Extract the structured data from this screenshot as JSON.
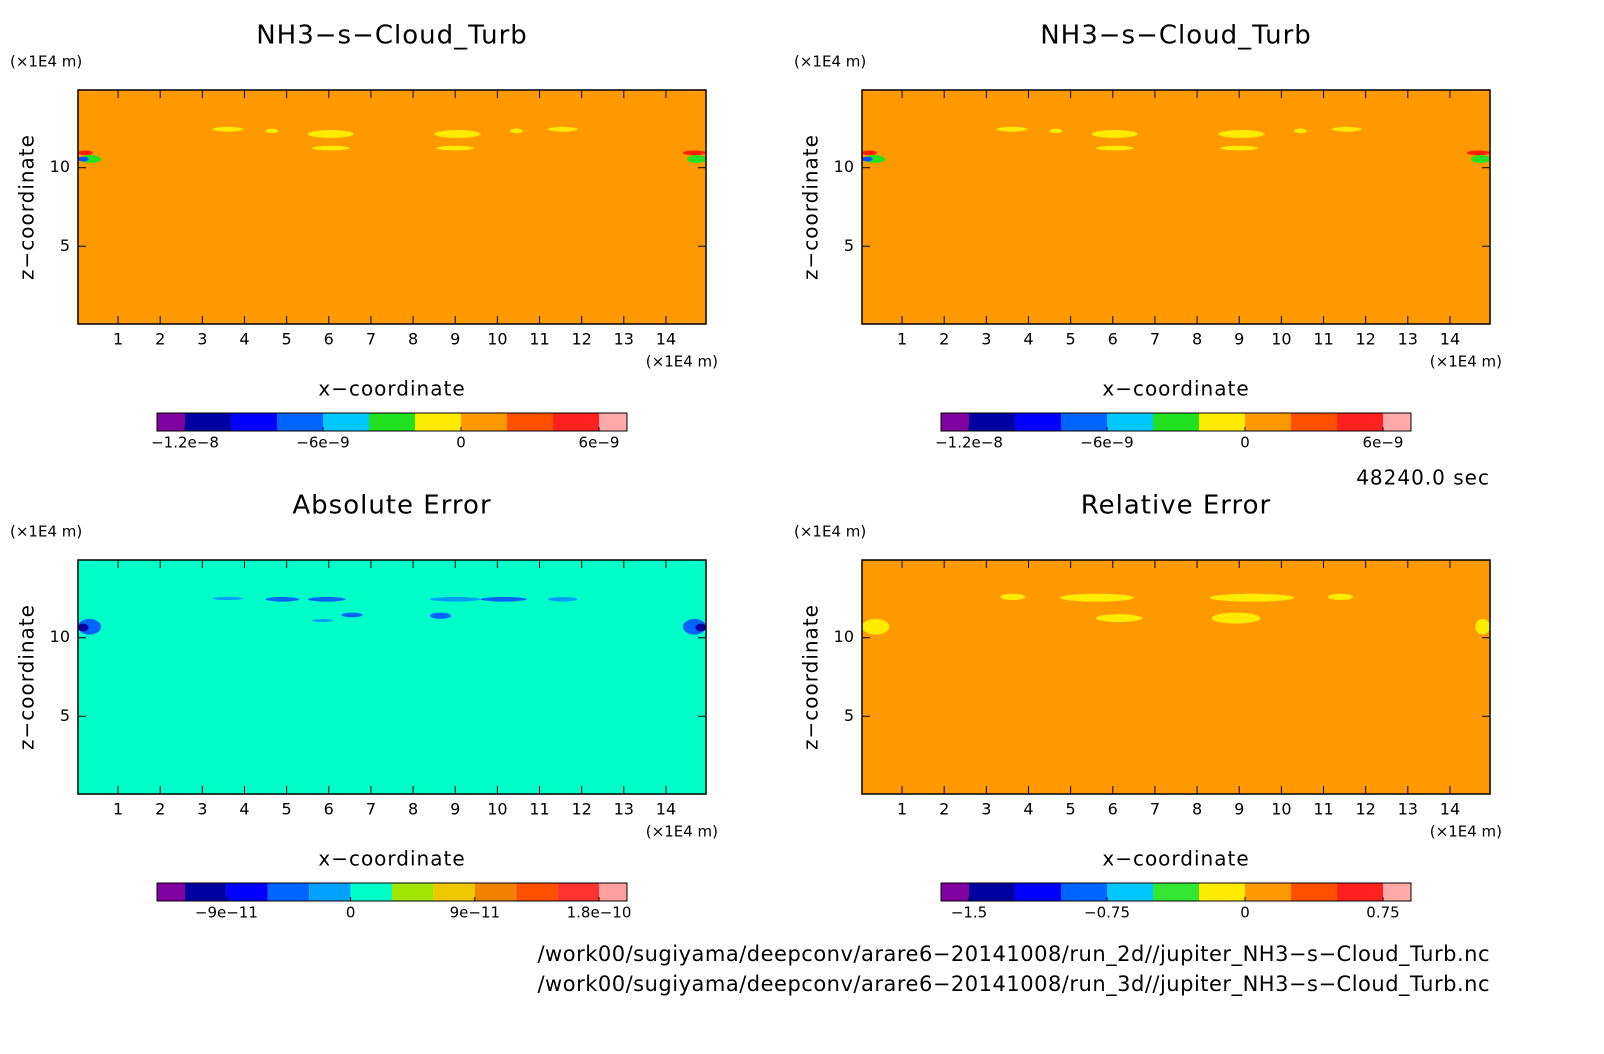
{
  "chart_data": [
    {
      "type": "contour",
      "title": "NH3−s−Cloud_Turb",
      "x_label": "x−coordinate",
      "y_label": "z−coordinate",
      "x_unit": "(×1E4 m)",
      "y_unit": "(×1E4 m)",
      "xlim": [
        0.05,
        14.95
      ],
      "ylim": [
        0.05,
        14.95
      ],
      "xticks": [
        1,
        2,
        3,
        4,
        5,
        6,
        7,
        8,
        9,
        10,
        11,
        12,
        13,
        14
      ],
      "yticks": [
        5,
        10
      ],
      "fill_color": "#ff9900",
      "features": [
        {
          "x": [
            3.24,
            3.97
          ],
          "z": [
            12.3,
            12.6
          ],
          "color": "#ffeb00"
        },
        {
          "x": [
            4.5,
            4.8
          ],
          "z": [
            12.2,
            12.5
          ],
          "color": "#ffeb00"
        },
        {
          "x": [
            5.5,
            6.6
          ],
          "z": [
            11.9,
            12.4
          ],
          "color": "#ffeb00"
        },
        {
          "x": [
            5.6,
            6.5
          ],
          "z": [
            11.1,
            11.4
          ],
          "color": "#ffeb00"
        },
        {
          "x": [
            8.5,
            9.6
          ],
          "z": [
            11.9,
            12.4
          ],
          "color": "#ffeb00"
        },
        {
          "x": [
            8.55,
            9.45
          ],
          "z": [
            11.1,
            11.4
          ],
          "color": "#ffeb00"
        },
        {
          "x": [
            10.3,
            10.6
          ],
          "z": [
            12.2,
            12.5
          ],
          "color": "#ffeb00"
        },
        {
          "x": [
            11.2,
            11.9
          ],
          "z": [
            12.3,
            12.6
          ],
          "color": "#ffeb00"
        },
        {
          "x": [
            0.05,
            0.4
          ],
          "z": [
            10.8,
            11.1
          ],
          "color": "#ff2000"
        },
        {
          "x": [
            0.1,
            0.6
          ],
          "z": [
            10.3,
            10.8
          ],
          "color": "#20e020"
        },
        {
          "x": [
            0.05,
            0.3
          ],
          "z": [
            10.4,
            10.7
          ],
          "color": "#0050ff"
        },
        {
          "x": [
            14.4,
            14.95
          ],
          "z": [
            10.8,
            11.1
          ],
          "color": "#ff2000"
        },
        {
          "x": [
            14.5,
            14.95
          ],
          "z": [
            10.3,
            10.8
          ],
          "color": "#20e020"
        }
      ],
      "colorbar": {
        "levels": [
          -1.2e-08,
          -1e-08,
          -8e-09,
          -6e-09,
          -4e-09,
          -2e-09,
          0,
          2e-09,
          4e-09,
          6e-09
        ],
        "colors": [
          "#8000a0",
          "#0000a0",
          "#0000ff",
          "#0064ff",
          "#00c8ff",
          "#20e020",
          "#ffeb00",
          "#ff9900",
          "#ff5000",
          "#ff2020",
          "#ffaaaa"
        ],
        "ticks": [
          {
            "value": -1.2e-08,
            "label": "−1.2e−8"
          },
          {
            "value": -6e-09,
            "label": "−6e−9"
          },
          0,
          {
            "value": 6e-09,
            "label": "6e−9"
          }
        ]
      }
    },
    {
      "type": "contour",
      "title": "NH3−s−Cloud_Turb",
      "x_label": "x−coordinate",
      "y_label": "z−coordinate",
      "x_unit": "(×1E4 m)",
      "y_unit": "(×1E4 m)",
      "xlim": [
        0.05,
        14.95
      ],
      "ylim": [
        0.05,
        14.95
      ],
      "xticks": [
        1,
        2,
        3,
        4,
        5,
        6,
        7,
        8,
        9,
        10,
        11,
        12,
        13,
        14
      ],
      "yticks": [
        5,
        10
      ],
      "fill_color": "#ff9900",
      "features": [
        {
          "x": [
            3.24,
            3.97
          ],
          "z": [
            12.3,
            12.6
          ],
          "color": "#ffeb00"
        },
        {
          "x": [
            4.5,
            4.8
          ],
          "z": [
            12.2,
            12.5
          ],
          "color": "#ffeb00"
        },
        {
          "x": [
            5.5,
            6.6
          ],
          "z": [
            11.9,
            12.4
          ],
          "color": "#ffeb00"
        },
        {
          "x": [
            5.6,
            6.5
          ],
          "z": [
            11.1,
            11.4
          ],
          "color": "#ffeb00"
        },
        {
          "x": [
            8.5,
            9.6
          ],
          "z": [
            11.9,
            12.4
          ],
          "color": "#ffeb00"
        },
        {
          "x": [
            8.55,
            9.45
          ],
          "z": [
            11.1,
            11.4
          ],
          "color": "#ffeb00"
        },
        {
          "x": [
            10.3,
            10.6
          ],
          "z": [
            12.2,
            12.5
          ],
          "color": "#ffeb00"
        },
        {
          "x": [
            11.2,
            11.9
          ],
          "z": [
            12.3,
            12.6
          ],
          "color": "#ffeb00"
        },
        {
          "x": [
            0.05,
            0.4
          ],
          "z": [
            10.8,
            11.1
          ],
          "color": "#ff2000"
        },
        {
          "x": [
            0.1,
            0.6
          ],
          "z": [
            10.3,
            10.8
          ],
          "color": "#20e020"
        },
        {
          "x": [
            0.05,
            0.3
          ],
          "z": [
            10.4,
            10.7
          ],
          "color": "#0050ff"
        },
        {
          "x": [
            14.4,
            14.95
          ],
          "z": [
            10.8,
            11.1
          ],
          "color": "#ff2000"
        },
        {
          "x": [
            14.5,
            14.95
          ],
          "z": [
            10.3,
            10.8
          ],
          "color": "#20e020"
        }
      ],
      "colorbar": {
        "levels": [
          -1.2e-08,
          -1e-08,
          -8e-09,
          -6e-09,
          -4e-09,
          -2e-09,
          0,
          2e-09,
          4e-09,
          6e-09
        ],
        "colors": [
          "#8000a0",
          "#0000a0",
          "#0000ff",
          "#0064ff",
          "#00c8ff",
          "#20e020",
          "#ffeb00",
          "#ff9900",
          "#ff5000",
          "#ff2020",
          "#ffaaaa"
        ],
        "ticks": [
          {
            "value": -1.2e-08,
            "label": "−1.2e−8"
          },
          {
            "value": -6e-09,
            "label": "−6e−9"
          },
          0,
          {
            "value": 6e-09,
            "label": "6e−9"
          }
        ]
      }
    },
    {
      "type": "contour",
      "title": "Absolute Error",
      "x_label": "x−coordinate",
      "y_label": "z−coordinate",
      "x_unit": "(×1E4 m)",
      "y_unit": "(×1E4 m)",
      "xlim": [
        0.05,
        14.95
      ],
      "ylim": [
        0.05,
        14.95
      ],
      "xticks": [
        1,
        2,
        3,
        4,
        5,
        6,
        7,
        8,
        9,
        10,
        11,
        12,
        13,
        14
      ],
      "yticks": [
        5,
        10
      ],
      "fill_color": "#00ffc8",
      "features": [
        {
          "x": [
            3.24,
            3.97
          ],
          "z": [
            12.4,
            12.6
          ],
          "color": "#00a0ff"
        },
        {
          "x": [
            4.5,
            5.3
          ],
          "z": [
            12.3,
            12.6
          ],
          "color": "#0064ff"
        },
        {
          "x": [
            5.5,
            6.4
          ],
          "z": [
            12.3,
            12.6
          ],
          "color": "#0064ff"
        },
        {
          "x": [
            6.3,
            6.8
          ],
          "z": [
            11.3,
            11.6
          ],
          "color": "#0064ff"
        },
        {
          "x": [
            5.6,
            6.1
          ],
          "z": [
            11.0,
            11.2
          ],
          "color": "#00a0ff"
        },
        {
          "x": [
            8.4,
            9.6
          ],
          "z": [
            12.3,
            12.6
          ],
          "color": "#00a0ff"
        },
        {
          "x": [
            8.4,
            8.9
          ],
          "z": [
            11.2,
            11.6
          ],
          "color": "#0064ff"
        },
        {
          "x": [
            9.6,
            10.7
          ],
          "z": [
            12.3,
            12.6
          ],
          "color": "#0064ff"
        },
        {
          "x": [
            11.2,
            11.9
          ],
          "z": [
            12.3,
            12.6
          ],
          "color": "#00a0ff"
        },
        {
          "x": [
            0.05,
            0.6
          ],
          "z": [
            10.2,
            11.2
          ],
          "color": "#0064ff"
        },
        {
          "x": [
            0.05,
            0.3
          ],
          "z": [
            10.4,
            10.9
          ],
          "color": "#0000a0"
        },
        {
          "x": [
            14.4,
            14.95
          ],
          "z": [
            10.2,
            11.2
          ],
          "color": "#0064ff"
        },
        {
          "x": [
            14.7,
            14.95
          ],
          "z": [
            10.4,
            10.9
          ],
          "color": "#0000a0"
        }
      ],
      "colorbar": {
        "levels": [
          -1.2e-10,
          -9e-11,
          -6e-11,
          -3e-11,
          0,
          3e-11,
          6e-11,
          9e-11,
          1.2e-10,
          1.5e-10,
          1.8e-10
        ],
        "colors": [
          "#8000a0",
          "#0000a0",
          "#0000ff",
          "#0064ff",
          "#00a0ff",
          "#00ffc8",
          "#a0e600",
          "#f0c800",
          "#f08200",
          "#ff5000",
          "#ff3232",
          "#ffa0a0"
        ],
        "ticks": [
          {
            "value": -9e-11,
            "label": "−9e−11"
          },
          0,
          {
            "value": 9e-11,
            "label": "9e−11"
          },
          {
            "value": 1.8e-10,
            "label": "1.8e−10"
          }
        ]
      }
    },
    {
      "type": "contour",
      "title": "Relative Error",
      "x_label": "x−coordinate",
      "y_label": "z−coordinate",
      "x_unit": "(×1E4 m)",
      "y_unit": "(×1E4 m)",
      "xlim": [
        0.05,
        14.95
      ],
      "ylim": [
        0.05,
        14.95
      ],
      "xticks": [
        1,
        2,
        3,
        4,
        5,
        6,
        7,
        8,
        9,
        10,
        11,
        12,
        13,
        14
      ],
      "yticks": [
        5,
        10
      ],
      "fill_color": "#ff9900",
      "features": [
        {
          "x": [
            3.33,
            3.92
          ],
          "z": [
            12.4,
            12.8
          ],
          "color": "#ffeb00"
        },
        {
          "x": [
            4.75,
            6.5
          ],
          "z": [
            12.3,
            12.8
          ],
          "color": "#ffeb00"
        },
        {
          "x": [
            5.6,
            6.7
          ],
          "z": [
            11.0,
            11.5
          ],
          "color": "#ffeb00"
        },
        {
          "x": [
            8.3,
            10.3
          ],
          "z": [
            12.3,
            12.8
          ],
          "color": "#ffeb00"
        },
        {
          "x": [
            8.35,
            9.5
          ],
          "z": [
            10.9,
            11.6
          ],
          "color": "#ffeb00"
        },
        {
          "x": [
            11.1,
            11.7
          ],
          "z": [
            12.4,
            12.8
          ],
          "color": "#ffeb00"
        },
        {
          "x": [
            0.05,
            0.7
          ],
          "z": [
            10.2,
            11.2
          ],
          "color": "#ffeb00"
        },
        {
          "x": [
            14.6,
            14.95
          ],
          "z": [
            10.2,
            11.2
          ],
          "color": "#ffeb00"
        }
      ],
      "colorbar": {
        "levels": [
          -1.5,
          -1.25,
          -1,
          -0.75,
          -0.5,
          -0.25,
          0,
          0.25,
          0.5,
          0.75
        ],
        "colors": [
          "#8000a0",
          "#0000a0",
          "#0000ff",
          "#0064ff",
          "#00c8ff",
          "#32e632",
          "#ffeb00",
          "#ff9900",
          "#ff5000",
          "#ff2020",
          "#ffaaaa"
        ],
        "ticks": [
          {
            "value": -1.5,
            "label": "−1.5"
          },
          {
            "value": -0.75,
            "label": "−0.75"
          },
          0,
          0.75
        ]
      }
    }
  ],
  "time": "48240.0 sec",
  "files": [
    "/work00/sugiyama/deepconv/arare6−20141008/run_2d//jupiter_NH3−s−Cloud_Turb.nc",
    "/work00/sugiyama/deepconv/arare6−20141008/run_3d//jupiter_NH3−s−Cloud_Turb.nc"
  ]
}
